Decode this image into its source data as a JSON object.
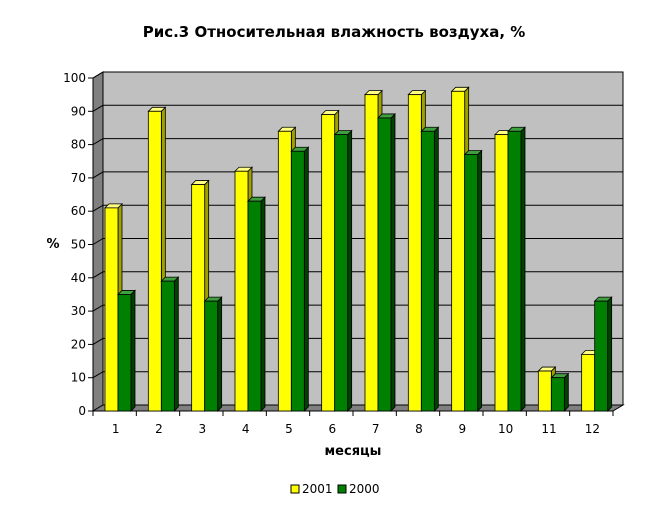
{
  "chart_data": {
    "type": "bar",
    "title": "Рис.3 Относительная влажность воздуха, %",
    "xlabel": "месяцы",
    "ylabel": "%",
    "ylim": [
      0,
      100
    ],
    "yticks": [
      0,
      10,
      20,
      30,
      40,
      50,
      60,
      70,
      80,
      90,
      100
    ],
    "categories": [
      "1",
      "2",
      "3",
      "4",
      "5",
      "6",
      "7",
      "8",
      "9",
      "10",
      "11",
      "12"
    ],
    "series": [
      {
        "name": "2001",
        "values": [
          61,
          90,
          68,
          72,
          84,
          89,
          95,
          95,
          96,
          83,
          12,
          17
        ]
      },
      {
        "name": "2000",
        "values": [
          35,
          39,
          33,
          63,
          78,
          83,
          88,
          84,
          77,
          84,
          10,
          33
        ]
      }
    ],
    "grid": true,
    "legend_position": "bottom",
    "colors": {
      "wall": "#c0c0c0",
      "wall_side": "#808080",
      "floor": "#808080",
      "series": [
        {
          "front": "#ffff00",
          "side": "#a0a000",
          "top": "#ffff80"
        },
        {
          "front": "#008000",
          "side": "#004000",
          "top": "#40a040"
        }
      ]
    }
  }
}
